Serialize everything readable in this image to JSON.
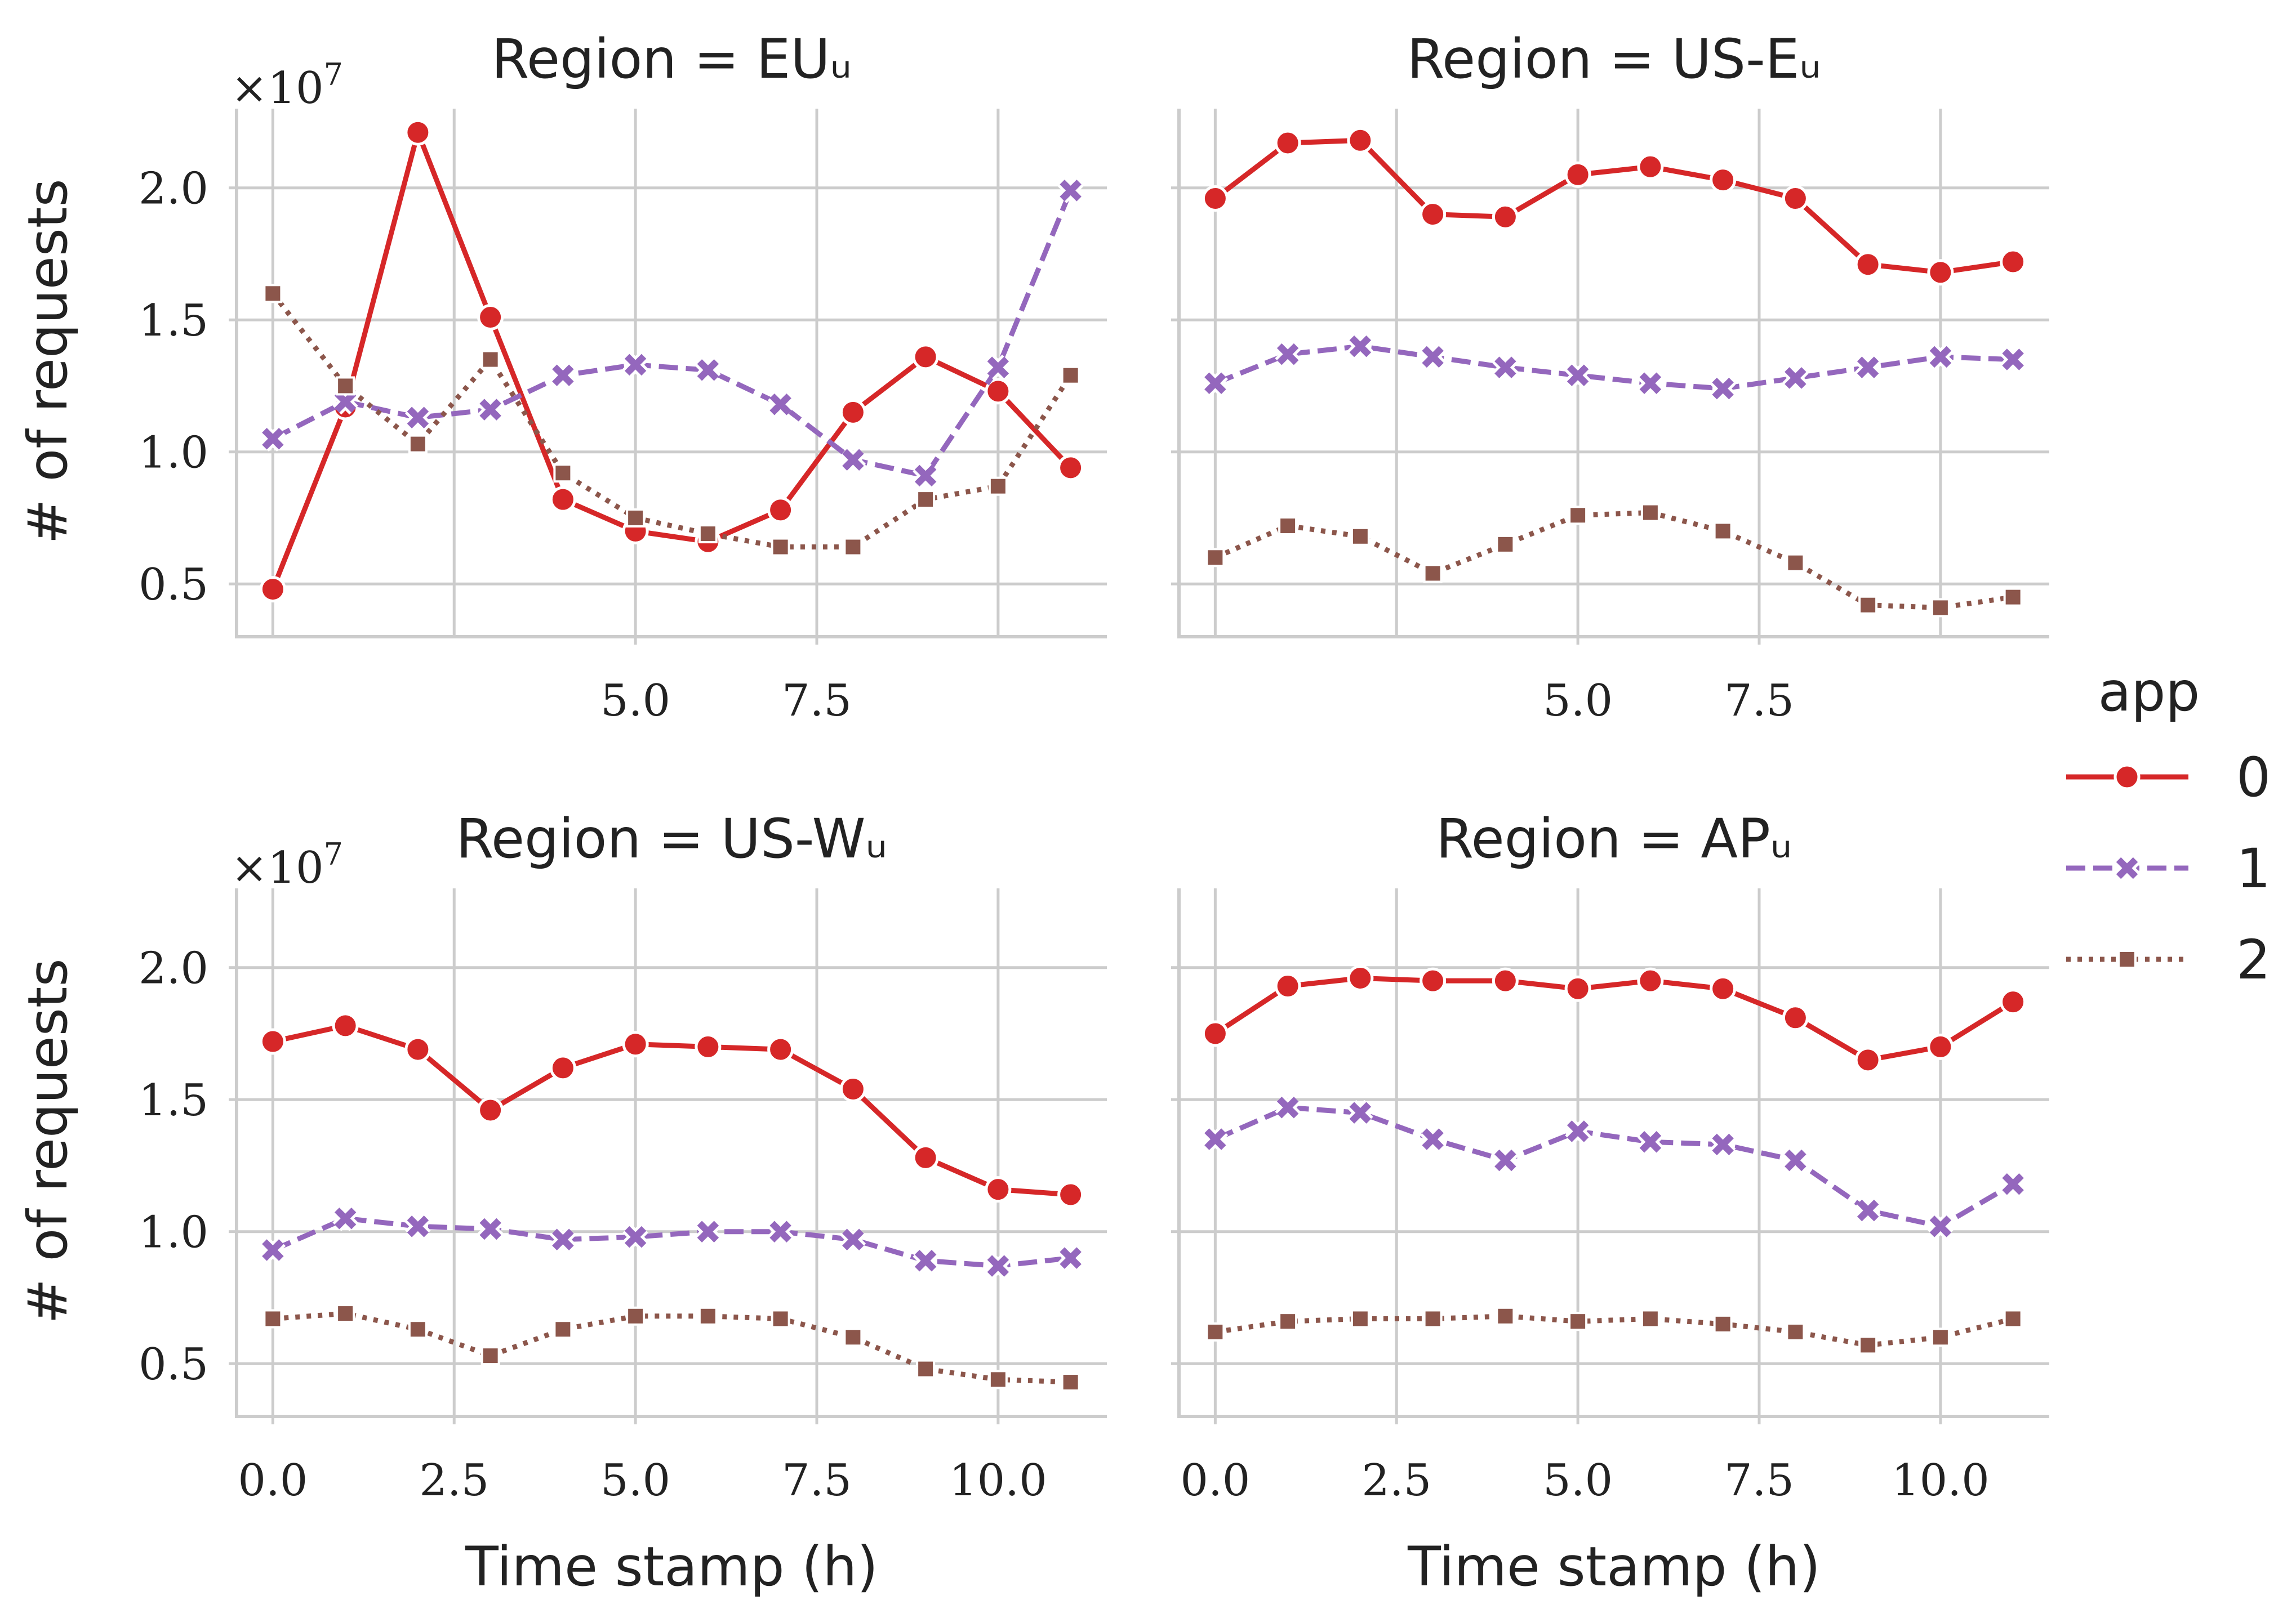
{
  "chart_data": {
    "type": "line",
    "facet_variable": "Region",
    "legend": {
      "title": "app",
      "placement": "right",
      "entries": [
        {
          "label": "0",
          "color": "#d62728",
          "marker": "circle",
          "dash": "solid"
        },
        {
          "label": "1",
          "color": "#9467bd",
          "marker": "x",
          "dash": "dashed"
        },
        {
          "label": "2",
          "color": "#8c564b",
          "marker": "square",
          "dash": "dotted"
        }
      ]
    },
    "x": [
      0,
      1,
      2,
      3,
      4,
      5,
      6,
      7,
      8,
      9,
      10,
      11
    ],
    "xlim": [
      -0.5,
      11.5
    ],
    "ylim": [
      0.3,
      2.3
    ],
    "y_scale_label": "×10^7",
    "y_multiplier": 10000000,
    "xlabel": "Time stamp (h)",
    "ylabel": "# of requests",
    "grid": true,
    "panels": [
      {
        "title": "Region = EUᵤ",
        "xticks": [
          "5.0",
          "7.5"
        ],
        "xtick_values": [
          5.0,
          7.5
        ],
        "show_xlabel": false,
        "show_ylabel": true,
        "yticks": [
          "0.5",
          "1.0",
          "1.5",
          "2.0"
        ],
        "series": [
          {
            "name": "0",
            "values": [
              0.48,
              1.17,
              2.21,
              1.51,
              0.82,
              0.7,
              0.66,
              0.78,
              1.15,
              1.36,
              1.23,
              0.94
            ]
          },
          {
            "name": "1",
            "values": [
              1.05,
              1.19,
              1.13,
              1.16,
              1.29,
              1.33,
              1.31,
              1.18,
              0.97,
              0.91,
              1.32,
              1.99
            ]
          },
          {
            "name": "2",
            "values": [
              1.6,
              1.25,
              1.03,
              1.35,
              0.92,
              0.75,
              0.69,
              0.64,
              0.64,
              0.82,
              0.87,
              1.29
            ]
          }
        ]
      },
      {
        "title": "Region = US-Eᵤ",
        "xticks": [
          "5.0",
          "7.5"
        ],
        "xtick_values": [
          5.0,
          7.5
        ],
        "show_xlabel": false,
        "show_ylabel": false,
        "yticks": [],
        "series": [
          {
            "name": "0",
            "values": [
              1.96,
              2.17,
              2.18,
              1.9,
              1.89,
              2.05,
              2.08,
              2.03,
              1.96,
              1.71,
              1.68,
              1.72
            ]
          },
          {
            "name": "1",
            "values": [
              1.26,
              1.37,
              1.4,
              1.36,
              1.32,
              1.29,
              1.26,
              1.24,
              1.28,
              1.32,
              1.36,
              1.35
            ]
          },
          {
            "name": "2",
            "values": [
              0.6,
              0.72,
              0.68,
              0.54,
              0.65,
              0.76,
              0.77,
              0.7,
              0.58,
              0.42,
              0.41,
              0.45
            ]
          }
        ]
      },
      {
        "title": "Region = US-Wᵤ",
        "xticks": [
          "0.0",
          "2.5",
          "5.0",
          "7.5",
          "10.0"
        ],
        "xtick_values": [
          0,
          2.5,
          5.0,
          7.5,
          10.0
        ],
        "show_xlabel": true,
        "show_ylabel": true,
        "yticks": [
          "0.5",
          "1.0",
          "1.5",
          "2.0"
        ],
        "series": [
          {
            "name": "0",
            "values": [
              1.72,
              1.78,
              1.69,
              1.46,
              1.62,
              1.71,
              1.7,
              1.69,
              1.54,
              1.28,
              1.16,
              1.14
            ]
          },
          {
            "name": "1",
            "values": [
              0.93,
              1.05,
              1.02,
              1.01,
              0.97,
              0.98,
              1.0,
              1.0,
              0.97,
              0.89,
              0.87,
              0.9
            ]
          },
          {
            "name": "2",
            "values": [
              0.67,
              0.69,
              0.63,
              0.53,
              0.63,
              0.68,
              0.68,
              0.67,
              0.6,
              0.48,
              0.44,
              0.43
            ]
          }
        ]
      },
      {
        "title": "Region = APᵤ",
        "xticks": [
          "0.0",
          "2.5",
          "5.0",
          "7.5",
          "10.0"
        ],
        "xtick_values": [
          0,
          2.5,
          5.0,
          7.5,
          10.0
        ],
        "show_xlabel": true,
        "show_ylabel": false,
        "yticks": [],
        "series": [
          {
            "name": "0",
            "values": [
              1.75,
              1.93,
              1.96,
              1.95,
              1.95,
              1.92,
              1.95,
              1.92,
              1.81,
              1.65,
              1.7,
              1.87
            ]
          },
          {
            "name": "1",
            "values": [
              1.35,
              1.47,
              1.45,
              1.35,
              1.27,
              1.38,
              1.34,
              1.33,
              1.27,
              1.08,
              1.02,
              1.18
            ]
          },
          {
            "name": "2",
            "values": [
              0.62,
              0.66,
              0.67,
              0.67,
              0.68,
              0.66,
              0.67,
              0.65,
              0.62,
              0.57,
              0.6,
              0.67
            ]
          }
        ]
      }
    ]
  }
}
